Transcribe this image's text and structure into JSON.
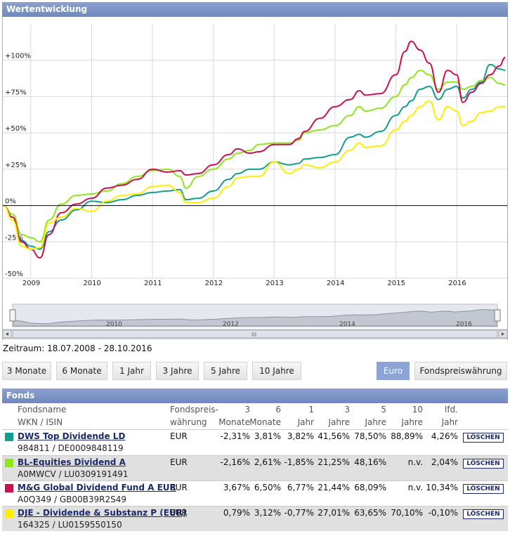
{
  "panel_title": "Wertentwicklung",
  "zeitraum": "Zeitraum: 18.07.2008 - 28.10.2016",
  "range_buttons": [
    "3 Monate",
    "6 Monate",
    "1 Jahr",
    "3 Jahre",
    "5 Jahre",
    "10 Jahre"
  ],
  "currency_buttons": {
    "euro": "Euro",
    "fund": "Fondspreiswährung"
  },
  "navigator": {
    "year_labels": [
      "2010",
      "2012",
      "2014",
      "2016"
    ],
    "scroll_grip": "III"
  },
  "funds_title": "Fonds",
  "table_headers": {
    "name1": "Fondsname",
    "name2": "WKN / ISIN",
    "cur1": "Fondspreis-",
    "cur2": "währung",
    "m3a": "3",
    "m3b": "Monate",
    "m6a": "6",
    "m6b": "Monate",
    "y1a": "1",
    "y1b": "Jahr",
    "y3a": "3",
    "y3b": "Jahre",
    "y5a": "5",
    "y5b": "Jahre",
    "y10a": "10",
    "y10b": "Jahre",
    "ytda": "lfd.",
    "ytdb": "Jahr"
  },
  "funds": [
    {
      "name": "DWS Top Dividende LD",
      "id": "984811 / DE0009848119",
      "currency": "EUR",
      "m3": "-2,31%",
      "m6": "3,81%",
      "y1": "3,82%",
      "y3": "41,56%",
      "y5": "78,50%",
      "y10": "88,89%",
      "ytd": "4,26%",
      "delete": "LÖSCHEN",
      "color": "#129e8e"
    },
    {
      "name": "BL-Equities Dividend A",
      "id": "A0MWCV / LU0309191491",
      "currency": "EUR",
      "m3": "-2,16%",
      "m6": "2,61%",
      "y1": "-1,85%",
      "y3": "21,25%",
      "y5": "48,16%",
      "y10": "n.v.",
      "ytd": "2,04%",
      "delete": "LÖSCHEN",
      "color": "#8fe61d"
    },
    {
      "name": "M&G Global Dividend Fund A EUR",
      "id": "A0Q349 / GB00B39R2S49",
      "currency": "EUR",
      "m3": "3,67%",
      "m6": "6,50%",
      "y1": "6,77%",
      "y3": "21,44%",
      "y5": "68,09%",
      "y10": "n.v.",
      "ytd": "10,34%",
      "delete": "LÖSCHEN",
      "color": "#c8114e"
    },
    {
      "name": "DJE - Dividende & Substanz P (EUR)",
      "id": "164325 / LU0159550150",
      "currency": "EUR",
      "m3": "0,79%",
      "m6": "3,12%",
      "y1": "-0,77%",
      "y3": "27,01%",
      "y5": "63,65%",
      "y10": "70,10%",
      "ytd": "-0,10%",
      "delete": "LÖSCHEN",
      "color": "#ffee00"
    }
  ],
  "chart_data": {
    "type": "line",
    "xlim": [
      2008.54,
      2016.83
    ],
    "ylim": [
      -50,
      125
    ],
    "y_tick_labels": [
      "+100%",
      "+75%",
      "+50%",
      "+25%",
      "0%",
      "-25%",
      "-50%"
    ],
    "y_ticks": [
      100,
      75,
      50,
      25,
      0,
      -25,
      -50
    ],
    "x_tick_labels": [
      "2009",
      "2010",
      "2011",
      "2012",
      "2013",
      "2014",
      "2015",
      "2016"
    ],
    "x_ticks": [
      2009,
      2010,
      2011,
      2012,
      2013,
      2014,
      2015,
      2016
    ],
    "grid": true,
    "x": [
      2008.55,
      2008.7,
      2008.85,
      2009.0,
      2009.15,
      2009.3,
      2009.5,
      2009.75,
      2010.0,
      2010.25,
      2010.5,
      2010.75,
      2011.0,
      2011.25,
      2011.45,
      2011.55,
      2011.75,
      2012.0,
      2012.25,
      2012.4,
      2012.6,
      2012.75,
      2013.0,
      2013.25,
      2013.4,
      2013.5,
      2013.75,
      2014.0,
      2014.25,
      2014.4,
      2014.5,
      2014.75,
      2015.0,
      2015.15,
      2015.25,
      2015.4,
      2015.55,
      2015.7,
      2015.85,
      2016.0,
      2016.1,
      2016.25,
      2016.4,
      2016.55,
      2016.7,
      2016.8
    ],
    "series": [
      {
        "color": "#129e8e",
        "values": [
          0,
          -8,
          -24,
          -28,
          -30,
          -18,
          -10,
          -3,
          3,
          2,
          4,
          7,
          9,
          10,
          11,
          4,
          5,
          10,
          18,
          22,
          25,
          25,
          30,
          28,
          29,
          32,
          33,
          35,
          47,
          49,
          47,
          51,
          62,
          68,
          72,
          80,
          82,
          73,
          80,
          82,
          74,
          80,
          85,
          97,
          94,
          93
        ]
      },
      {
        "color": "#8fe61d",
        "values": [
          0,
          -6,
          -20,
          -22,
          -25,
          -10,
          1,
          7,
          8,
          10,
          15,
          20,
          24,
          25,
          20,
          12,
          20,
          25,
          32,
          36,
          38,
          42,
          43,
          43,
          45,
          50,
          52,
          55,
          62,
          68,
          65,
          67,
          75,
          83,
          88,
          93,
          90,
          80,
          85,
          85,
          80,
          82,
          86,
          88,
          84,
          83
        ]
      },
      {
        "color": "#c8114e",
        "values": [
          0,
          -8,
          -25,
          -30,
          -36,
          -20,
          -5,
          1,
          5,
          12,
          14,
          18,
          25,
          23,
          24,
          21,
          22,
          28,
          35,
          39,
          36,
          37,
          42,
          42,
          46,
          51,
          60,
          68,
          73,
          79,
          76,
          77,
          90,
          106,
          113,
          107,
          98,
          78,
          93,
          90,
          71,
          78,
          84,
          90,
          96,
          102
        ]
      },
      {
        "color": "#ffee00",
        "values": [
          0,
          -10,
          -28,
          -30,
          -29,
          -12,
          -8,
          -2,
          -4,
          3,
          7,
          8,
          13,
          14,
          9,
          2,
          2,
          5,
          13,
          19,
          20,
          20,
          30,
          22,
          25,
          28,
          26,
          30,
          38,
          43,
          40,
          41,
          52,
          58,
          62,
          68,
          72,
          59,
          68,
          65,
          55,
          58,
          64,
          65,
          68,
          68
        ]
      }
    ]
  }
}
